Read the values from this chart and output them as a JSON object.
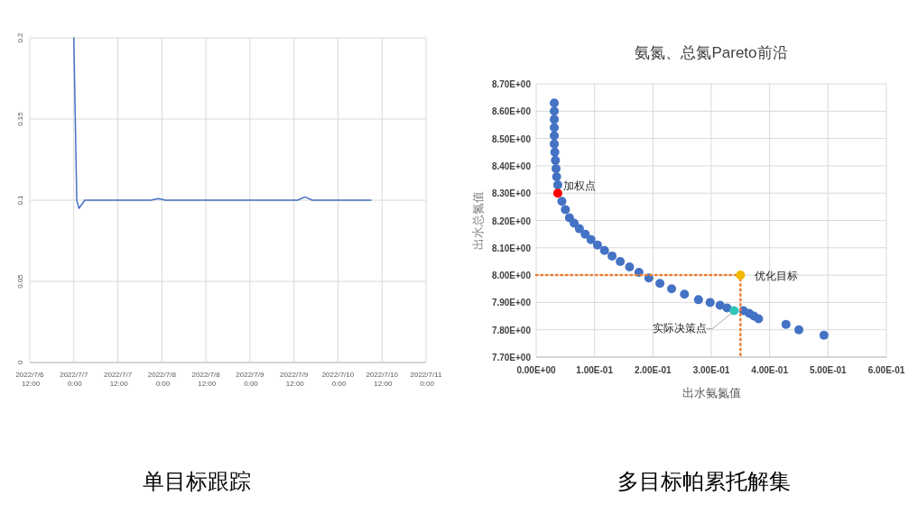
{
  "chart_data": [
    {
      "type": "line",
      "color": "#4472c4",
      "grid": true,
      "x": [
        "2022-07-07T00:00",
        "2022-07-07T00:48",
        "2022-07-07T01:24",
        "2022-07-07T03:00",
        "2022-07-07T05:00",
        "2022-07-07T07:00",
        "2022-07-07T09:00",
        "2022-07-07T11:00",
        "2022-07-07T13:00",
        "2022-07-07T15:00",
        "2022-07-07T17:00",
        "2022-07-07T19:00",
        "2022-07-07T21:00",
        "2022-07-07T23:00",
        "2022-07-08T01:00",
        "2022-07-08T03:00",
        "2022-07-08T05:00",
        "2022-07-08T07:00",
        "2022-07-08T09:00",
        "2022-07-08T11:00",
        "2022-07-08T13:00",
        "2022-07-08T15:00",
        "2022-07-08T17:00",
        "2022-07-08T19:00",
        "2022-07-08T21:00",
        "2022-07-08T23:00",
        "2022-07-09T01:00",
        "2022-07-09T03:00",
        "2022-07-09T05:00",
        "2022-07-09T07:00",
        "2022-07-09T09:00",
        "2022-07-09T11:00",
        "2022-07-09T13:00",
        "2022-07-09T15:00",
        "2022-07-09T17:00",
        "2022-07-09T19:00",
        "2022-07-09T21:00",
        "2022-07-09T23:00",
        "2022-07-10T01:00",
        "2022-07-10T03:00",
        "2022-07-10T05:00",
        "2022-07-10T07:00",
        "2022-07-10T09:00"
      ],
      "values": [
        0.2,
        0.1,
        0.095,
        0.1,
        0.1,
        0.1,
        0.1,
        0.1,
        0.1,
        0.1,
        0.1,
        0.1,
        0.1,
        0.101,
        0.1,
        0.1,
        0.1,
        0.1,
        0.1,
        0.1,
        0.1,
        0.1,
        0.1,
        0.1,
        0.1,
        0.1,
        0.1,
        0.1,
        0.1,
        0.1,
        0.1,
        0.1,
        0.1,
        0.102,
        0.1,
        0.1,
        0.1,
        0.1,
        0.1,
        0.1,
        0.1,
        0.1,
        0.1
      ],
      "xlim": [
        "2022-07-06T12:00",
        "2022-07-11T00:00"
      ],
      "xticks": [
        {
          "value": "2022-07-06T12:00",
          "label": "2022/7/6 12:00"
        },
        {
          "value": "2022-07-07T00:00",
          "label": "2022/7/7 0:00"
        },
        {
          "value": "2022-07-07T12:00",
          "label": "2022/7/7 12:00"
        },
        {
          "value": "2022-07-08T00:00",
          "label": "2022/7/8 0:00"
        },
        {
          "value": "2022-07-08T12:00",
          "label": "2022/7/8 12:00"
        },
        {
          "value": "2022-07-09T00:00",
          "label": "2022/7/9 0:00"
        },
        {
          "value": "2022-07-09T12:00",
          "label": "2022/7/9 12:00"
        },
        {
          "value": "2022-07-10T00:00",
          "label": "2022/7/10 0:00"
        },
        {
          "value": "2022-07-10T12:00",
          "label": "2022/7/10 12:00"
        },
        {
          "value": "2022-07-11T00:00",
          "label": "2022/7/11 0:00"
        }
      ],
      "ylim": [
        0,
        0.2
      ],
      "yticks": [
        0,
        0.05,
        0.1,
        0.15,
        0.2
      ],
      "annotations": [
        "单目标跟踪"
      ]
    },
    {
      "type": "scatter",
      "title": "氨氮、总氮Pareto前沿",
      "xlabel": "出水氨氮值",
      "ylabel": "出水总氮值",
      "grid": true,
      "xlim": [
        0,
        0.6
      ],
      "xticks": [
        {
          "value": 0,
          "label": "0.00E+00"
        },
        {
          "value": 0.1,
          "label": "1.00E-01"
        },
        {
          "value": 0.2,
          "label": "2.00E-01"
        },
        {
          "value": 0.3,
          "label": "3.00E-01"
        },
        {
          "value": 0.4,
          "label": "4.00E-01"
        },
        {
          "value": 0.5,
          "label": "5.00E-01"
        },
        {
          "value": 0.6,
          "label": "6.00E-01"
        }
      ],
      "ylim": [
        7.7,
        8.7
      ],
      "yticks": [
        {
          "value": 7.7,
          "label": "7.70E+00"
        },
        {
          "value": 7.8,
          "label": "7.80E+00"
        },
        {
          "value": 7.9,
          "label": "7.90E+00"
        },
        {
          "value": 8.0,
          "label": "8.00E+00"
        },
        {
          "value": 8.1,
          "label": "8.10E+00"
        },
        {
          "value": 8.2,
          "label": "8.20E+00"
        },
        {
          "value": 8.3,
          "label": "8.30E+00"
        },
        {
          "value": 8.4,
          "label": "8.40E+00"
        },
        {
          "value": 8.5,
          "label": "8.50E+00"
        },
        {
          "value": 8.6,
          "label": "8.60E+00"
        },
        {
          "value": 8.7,
          "label": "8.70E+00"
        }
      ],
      "series": [
        {
          "color": "#4472c4",
          "x": [
            0.031,
            0.031,
            0.031,
            0.031,
            0.031,
            0.031,
            0.032,
            0.033,
            0.034,
            0.035,
            0.037,
            0.044,
            0.05,
            0.057,
            0.065,
            0.074,
            0.084,
            0.094,
            0.105,
            0.117,
            0.13,
            0.144,
            0.16,
            0.176,
            0.193,
            0.212,
            0.232,
            0.254,
            0.278,
            0.298,
            0.315,
            0.327,
            0.355,
            0.365,
            0.373,
            0.381,
            0.428,
            0.45,
            0.493
          ],
          "values": [
            8.63,
            8.6,
            8.57,
            8.54,
            8.51,
            8.48,
            8.45,
            8.42,
            8.39,
            8.36,
            8.33,
            8.27,
            8.24,
            8.21,
            8.19,
            8.17,
            8.15,
            8.13,
            8.11,
            8.09,
            8.07,
            8.05,
            8.03,
            8.01,
            7.99,
            7.97,
            7.95,
            7.93,
            7.91,
            7.9,
            7.89,
            7.88,
            7.87,
            7.86,
            7.85,
            7.84,
            7.82,
            7.8,
            7.78
          ]
        },
        {
          "type": "line",
          "color": "#ed7d31",
          "line_style": "dotted",
          "x": [
            0,
            0.35,
            0.35
          ],
          "values": [
            8.0,
            8.0,
            7.7
          ]
        },
        {
          "color": "#ff0000",
          "x": [
            0.037
          ],
          "values": [
            8.3
          ]
        },
        {
          "color": "#2ec4b6",
          "x": [
            0.339
          ],
          "values": [
            7.87
          ]
        },
        {
          "color": "#f5b800",
          "x": [
            0.35
          ],
          "values": [
            8.0
          ]
        }
      ],
      "annotations": [
        {
          "text": "加权点",
          "x": 0.037,
          "y": 8.3
        },
        {
          "text": "优化目标",
          "x": 0.35,
          "y": 8.0
        },
        {
          "text": "实际决策点",
          "x": 0.339,
          "y": 7.87
        },
        "多目标帕累托解集"
      ]
    }
  ]
}
